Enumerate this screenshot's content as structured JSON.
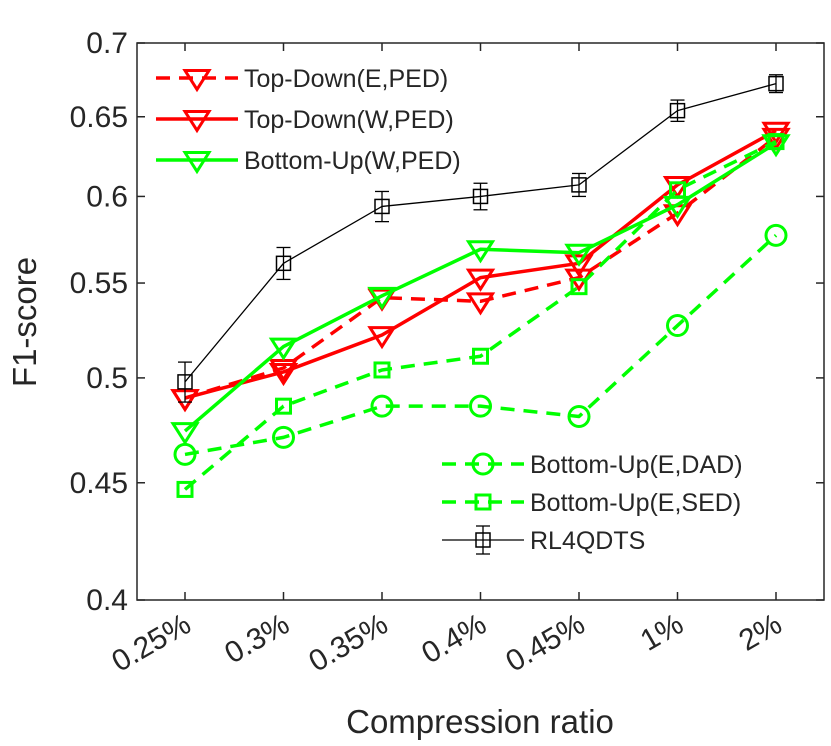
{
  "chart_data": {
    "type": "line",
    "title": "",
    "xlabel": "Compression ratio",
    "ylabel": "F1-score",
    "categories": [
      "0.25%",
      "0.3%",
      "0.35%",
      "0.4%",
      "0.45%",
      "1%",
      "2%"
    ],
    "yticks": [
      "0.4",
      "0.45",
      "0.5",
      "0.55",
      "0.6",
      "0.65",
      "0.7"
    ],
    "ylim": [
      0.4,
      0.7
    ],
    "y_scale": "log",
    "series": [
      {
        "name": "Top-Down(E,PED)",
        "color": "#ff0000",
        "line": "dashed",
        "marker": "triangle-down",
        "values": [
          0.49,
          0.505,
          0.542,
          0.54,
          0.553,
          0.59,
          0.637
        ]
      },
      {
        "name": "Top-Down(W,PED)",
        "color": "#ff0000",
        "line": "solid",
        "marker": "triangle-down",
        "values": [
          0.49,
          0.503,
          0.522,
          0.553,
          0.561,
          0.607,
          0.641
        ]
      },
      {
        "name": "Bottom-Up(W,PED)",
        "color": "#00ff00",
        "line": "solid",
        "marker": "triangle-down",
        "values": [
          0.474,
          0.516,
          0.543,
          0.569,
          0.567,
          0.595,
          0.633
        ]
      },
      {
        "name": "Bottom-Up(E,DAD)",
        "color": "#00ff00",
        "line": "dashed",
        "marker": "circle",
        "values": [
          0.463,
          0.471,
          0.486,
          0.486,
          0.481,
          0.527,
          0.577
        ]
      },
      {
        "name": "Bottom-Up(E,SED)",
        "color": "#00ff00",
        "line": "dashed",
        "marker": "square",
        "values": [
          0.447,
          0.486,
          0.504,
          0.511,
          0.548,
          0.604,
          0.634
        ]
      },
      {
        "name": "RL4QDTS",
        "color": "#000000",
        "line": "solid",
        "marker": "square-errorbar",
        "values": [
          0.498,
          0.561,
          0.594,
          0.6,
          0.607,
          0.654,
          0.672
        ],
        "error": [
          0.01,
          0.009,
          0.009,
          0.008,
          0.007,
          0.007,
          0.006
        ]
      }
    ],
    "legends": [
      {
        "placement": "top-left",
        "series": [
          0,
          1,
          2
        ]
      },
      {
        "placement": "bottom-right",
        "series": [
          3,
          4,
          5
        ]
      }
    ],
    "grid": false
  }
}
